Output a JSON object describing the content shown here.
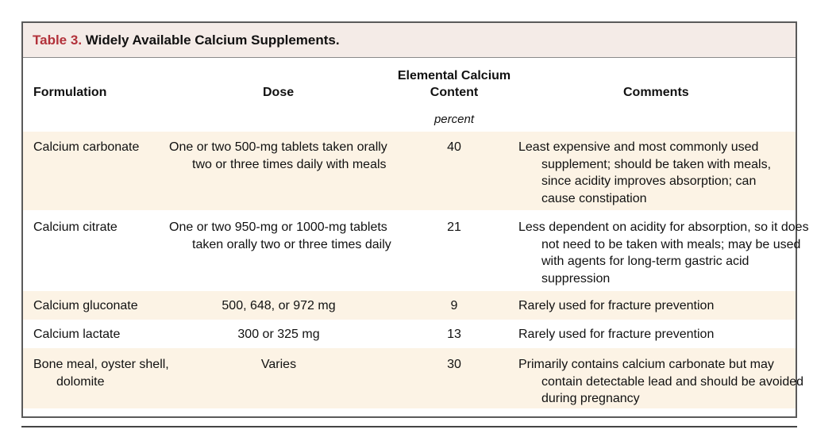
{
  "table": {
    "label": "Table 3.",
    "title": "Widely Available Calcium Supplements.",
    "headers": {
      "formulation": "Formulation",
      "dose": "Dose",
      "elemental_line1": "Elemental Calcium",
      "elemental_line2": "Content",
      "comments": "Comments",
      "elemental_unit": "percent"
    },
    "rows": [
      {
        "formulation": "Calcium carbonate",
        "dose": "One or two 500-mg tablets taken orally two or three times daily with meals",
        "content": "40",
        "comments": "Least expensive and most commonly used supplement; should be taken with meals, since acidity improves absorption; can cause constipation"
      },
      {
        "formulation": "Calcium citrate",
        "dose": "One or two 950-mg or 1000-mg tablets taken orally two or three times daily",
        "content": "21",
        "comments": "Less dependent on acidity for absorption, so it does not need to be taken with meals; may be used with agents for long-term gastric acid suppression"
      },
      {
        "formulation": "Calcium gluconate",
        "dose": "500, 648, or 972 mg",
        "content": "9",
        "comments": "Rarely used for fracture prevention"
      },
      {
        "formulation": "Calcium lactate",
        "dose": "300 or 325 mg",
        "content": "13",
        "comments": "Rarely used for fracture prevention"
      },
      {
        "formulation": "Bone meal, oyster shell, dolomite",
        "dose": "Varies",
        "content": "30",
        "comments": "Primarily contains calcium carbonate but may contain detectable lead and should be avoided during pregnancy"
      }
    ]
  },
  "colors": {
    "label_red": "#b2313a",
    "title_bg": "#f4ebe7",
    "row_shade": "#fcf3e5",
    "border": "#5a5a5a"
  }
}
